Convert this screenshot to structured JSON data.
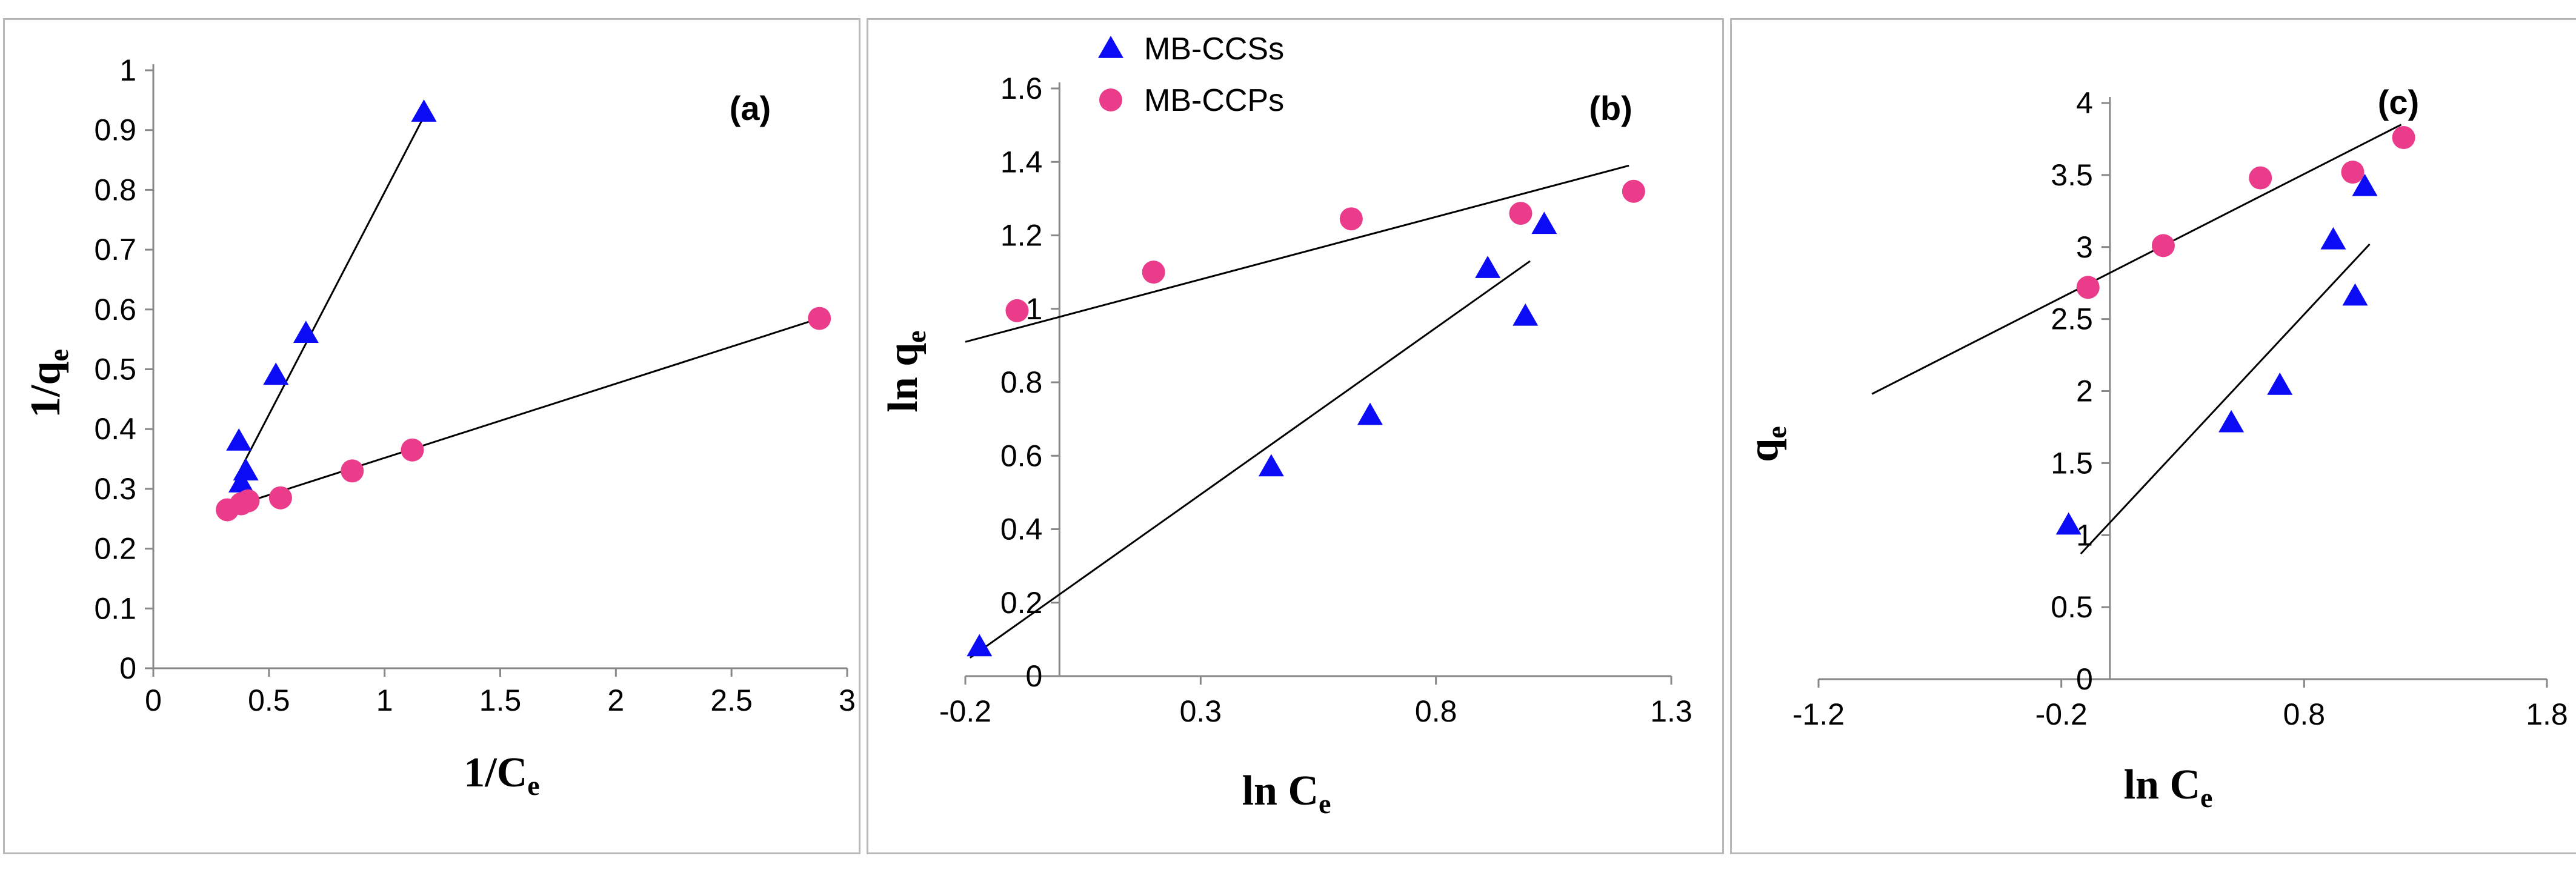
{
  "colors": {
    "triangle": "#0b0bf5",
    "circle": "#ea3c8a",
    "axis": "#888888",
    "fit": "#000000"
  },
  "chart_data": [
    {
      "type": "scatter",
      "label": "(a)",
      "xlabel": "1/C",
      "xlabel_sub": "e",
      "ylabel": "1/q",
      "ylabel_sub": "e",
      "xlim": [
        0,
        3
      ],
      "ylim": [
        0,
        1
      ],
      "xticks": [
        "0",
        "0.5",
        "1",
        "1.5",
        "2",
        "2.5",
        "3"
      ],
      "yticks": [
        "0",
        "0.1",
        "0.2",
        "0.3",
        "0.4",
        "0.5",
        "0.6",
        "0.7",
        "0.8",
        "0.9",
        "1"
      ],
      "series": [
        {
          "name": "MB-CCSs",
          "marker": "triangle",
          "points": [
            [
              0.38,
              0.31
            ],
            [
              0.4,
              0.33
            ],
            [
              0.37,
              0.38
            ],
            [
              0.53,
              0.49
            ],
            [
              0.66,
              0.56
            ],
            [
              1.17,
              0.93
            ]
          ],
          "fit": [
            [
              0.36,
              0.32
            ],
            [
              1.18,
              0.93
            ]
          ]
        },
        {
          "name": "MB-CCPs",
          "marker": "circle",
          "points": [
            [
              0.32,
              0.265
            ],
            [
              0.38,
              0.275
            ],
            [
              0.41,
              0.28
            ],
            [
              0.55,
              0.285
            ],
            [
              0.86,
              0.33
            ],
            [
              1.12,
              0.365
            ],
            [
              2.88,
              0.585
            ]
          ],
          "fit": [
            [
              0.3,
              0.265
            ],
            [
              2.88,
              0.585
            ]
          ]
        }
      ]
    },
    {
      "type": "scatter",
      "label": "(b)",
      "xlabel": "ln C",
      "xlabel_sub": "e",
      "ylabel": "ln q",
      "ylabel_sub": "e",
      "xlim": [
        -0.2,
        1.3
      ],
      "ylim": [
        0,
        1.6
      ],
      "xticks": [
        "-0.2",
        "0.3",
        "0.8",
        "1.3"
      ],
      "yticks": [
        "0",
        "0.2",
        "0.4",
        "0.6",
        "0.8",
        "1",
        "1.2",
        "1.4",
        "1.6"
      ],
      "legend": [
        {
          "name": "MB-CCSs",
          "marker": "triangle"
        },
        {
          "name": "MB-CCPs",
          "marker": "circle"
        }
      ],
      "series": [
        {
          "name": "MB-CCSs",
          "marker": "triangle",
          "points": [
            [
              -0.17,
              0.08
            ],
            [
              0.45,
              0.57
            ],
            [
              0.66,
              0.71
            ],
            [
              0.91,
              1.11
            ],
            [
              0.99,
              0.98
            ],
            [
              1.03,
              1.23
            ]
          ],
          "fit": [
            [
              -0.19,
              0.05
            ],
            [
              1.0,
              1.13
            ]
          ]
        },
        {
          "name": "MB-CCPs",
          "marker": "circle",
          "points": [
            [
              -0.09,
              0.995
            ],
            [
              0.2,
              1.1
            ],
            [
              0.62,
              1.245
            ],
            [
              0.98,
              1.26
            ],
            [
              1.22,
              1.32
            ]
          ],
          "fit": [
            [
              -0.2,
              0.91
            ],
            [
              1.21,
              1.39
            ]
          ]
        }
      ]
    },
    {
      "type": "scatter",
      "label": "(c)",
      "xlabel": "ln C",
      "xlabel_sub": "e",
      "ylabel": "q",
      "ylabel_sub": "e",
      "xlim": [
        -1.2,
        1.8
      ],
      "ylim": [
        0,
        4
      ],
      "xticks": [
        "-1.2",
        "-0.2",
        "0.8",
        "1.8"
      ],
      "yticks": [
        "0",
        "0.5",
        "1",
        "1.5",
        "2",
        "2.5",
        "3",
        "3.5",
        "4"
      ],
      "series": [
        {
          "name": "MB-CCSs",
          "marker": "triangle",
          "points": [
            [
              -0.17,
              1.07
            ],
            [
              0.5,
              1.78
            ],
            [
              0.7,
              2.04
            ],
            [
              0.92,
              3.05
            ],
            [
              1.01,
              2.66
            ],
            [
              1.05,
              3.42
            ]
          ],
          "fit": [
            [
              -0.12,
              0.87
            ],
            [
              1.07,
              3.02
            ]
          ]
        },
        {
          "name": "MB-CCPs",
          "marker": "circle",
          "points": [
            [
              -0.09,
              2.72
            ],
            [
              0.22,
              3.01
            ],
            [
              0.62,
              3.48
            ],
            [
              1.0,
              3.52
            ],
            [
              1.21,
              3.76
            ]
          ],
          "fit": [
            [
              -0.98,
              1.98
            ],
            [
              1.2,
              3.85
            ]
          ]
        }
      ]
    }
  ]
}
